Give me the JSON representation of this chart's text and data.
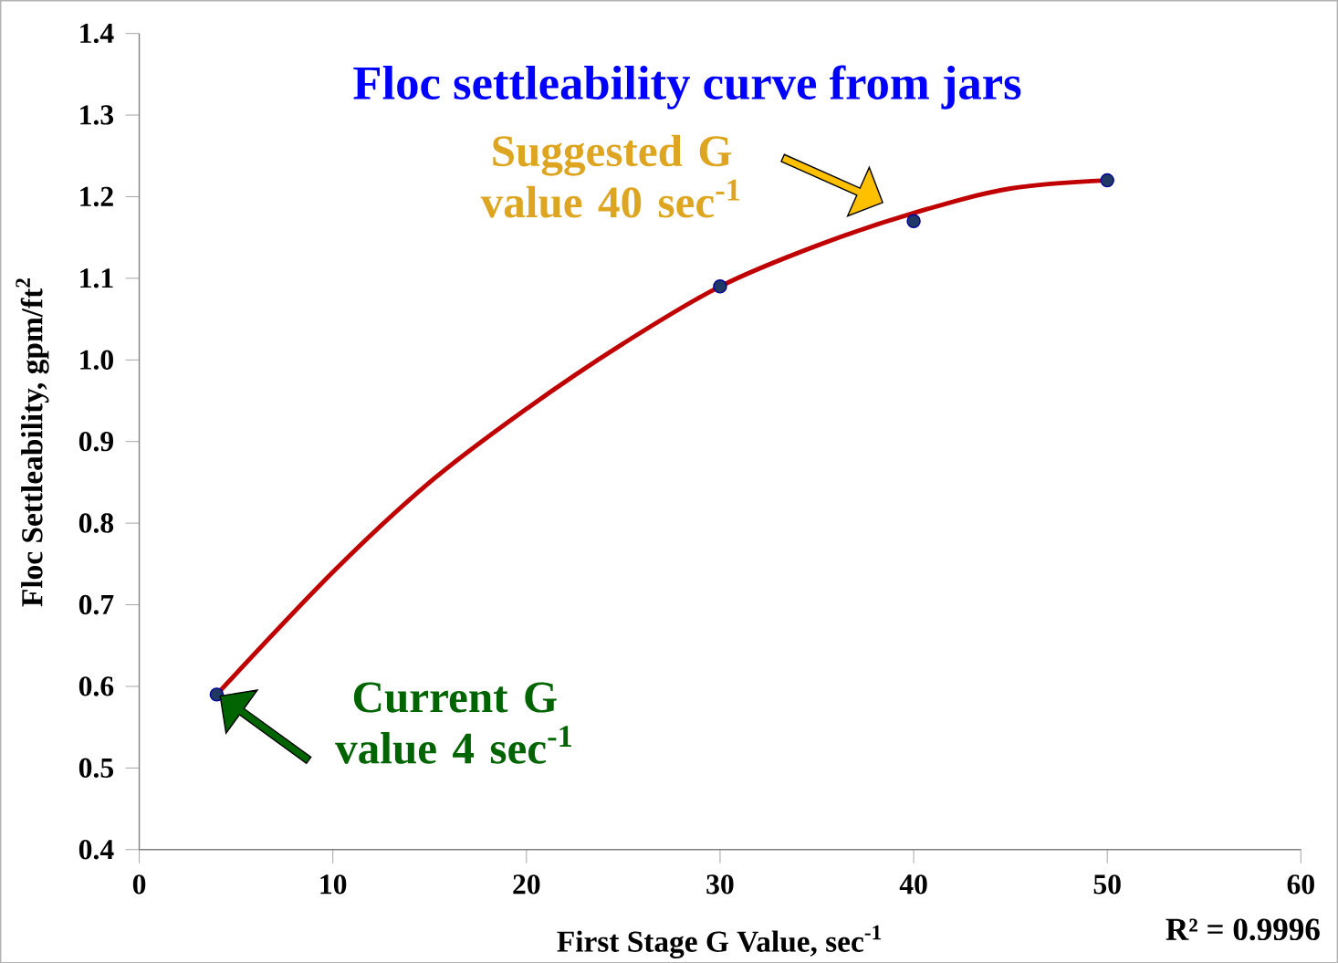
{
  "chart_data": {
    "type": "scatter",
    "title": "Floc settleability curve from jars",
    "xlabel": "First Stage G Value, sec$^{-1}$",
    "ylabel": "Floc Settleability, gpm/ft$^{2}$",
    "series": [
      {
        "color": "#1f3864",
        "marker": "circle",
        "x": [
          4,
          30,
          40,
          50
        ],
        "values": [
          0.59,
          1.09,
          1.17,
          1.22
        ]
      },
      {
        "type": "line",
        "color": "#c00000",
        "marker": "none",
        "line_style": "solid",
        "x": [
          4,
          10,
          15,
          20,
          25,
          30,
          35,
          40,
          45,
          50
        ],
        "values": [
          0.59,
          0.74,
          0.85,
          0.94,
          1.02,
          1.09,
          1.14,
          1.18,
          1.21,
          1.22
        ]
      }
    ],
    "xlim": [
      0,
      60
    ],
    "xticks": [
      0,
      10,
      20,
      30,
      40,
      50,
      60
    ],
    "ylim": [
      0.4,
      1.4
    ],
    "yticks": [
      0.4,
      0.5,
      0.6,
      0.7,
      0.8,
      0.9,
      {
        "value": 1.0,
        "label": "1.0"
      },
      1.1,
      1.2,
      1.3,
      1.4
    ],
    "annotations": [
      "Suggested G value 40 sec$^{-1}$",
      "Current G value 4 sec$^{-1}$",
      "R² = 0.9996"
    ]
  }
}
